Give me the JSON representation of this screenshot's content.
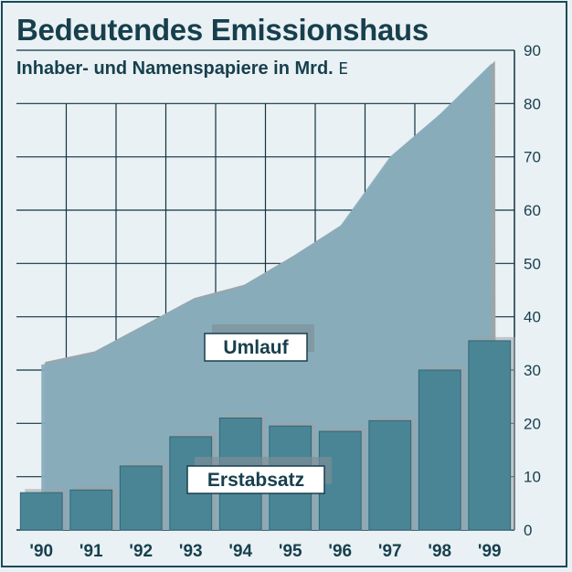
{
  "chart_data": {
    "type": "area",
    "title": "Bedeutendes Emissionshaus",
    "subtitle": "Inhaber- und Namenspapiere in Mrd.",
    "unit_symbol": "E",
    "categories": [
      "'90",
      "'91",
      "'92",
      "'93",
      "'94",
      "'95",
      "'96",
      "'97",
      "'98",
      "'99"
    ],
    "ylim": [
      0,
      90
    ],
    "yticks": [
      0,
      10,
      20,
      30,
      40,
      50,
      60,
      70,
      80,
      90
    ],
    "grid": true,
    "y_axis_position": "right",
    "series": [
      {
        "name": "Umlauf",
        "type": "area",
        "values": [
          31,
          33,
          38,
          43,
          45.5,
          51,
          57,
          70,
          78,
          87.5
        ]
      },
      {
        "name": "Erstabsatz",
        "type": "bar",
        "values": [
          7,
          7.5,
          12,
          17.5,
          21,
          19.5,
          18.5,
          20.5,
          30,
          35.5
        ]
      }
    ],
    "colors": {
      "background": "#e9f1f4",
      "area": "#87acbb",
      "bar": "#4a8596",
      "shadow": "#9ea4a7",
      "grid": "#123341",
      "text": "#173f4d"
    }
  }
}
